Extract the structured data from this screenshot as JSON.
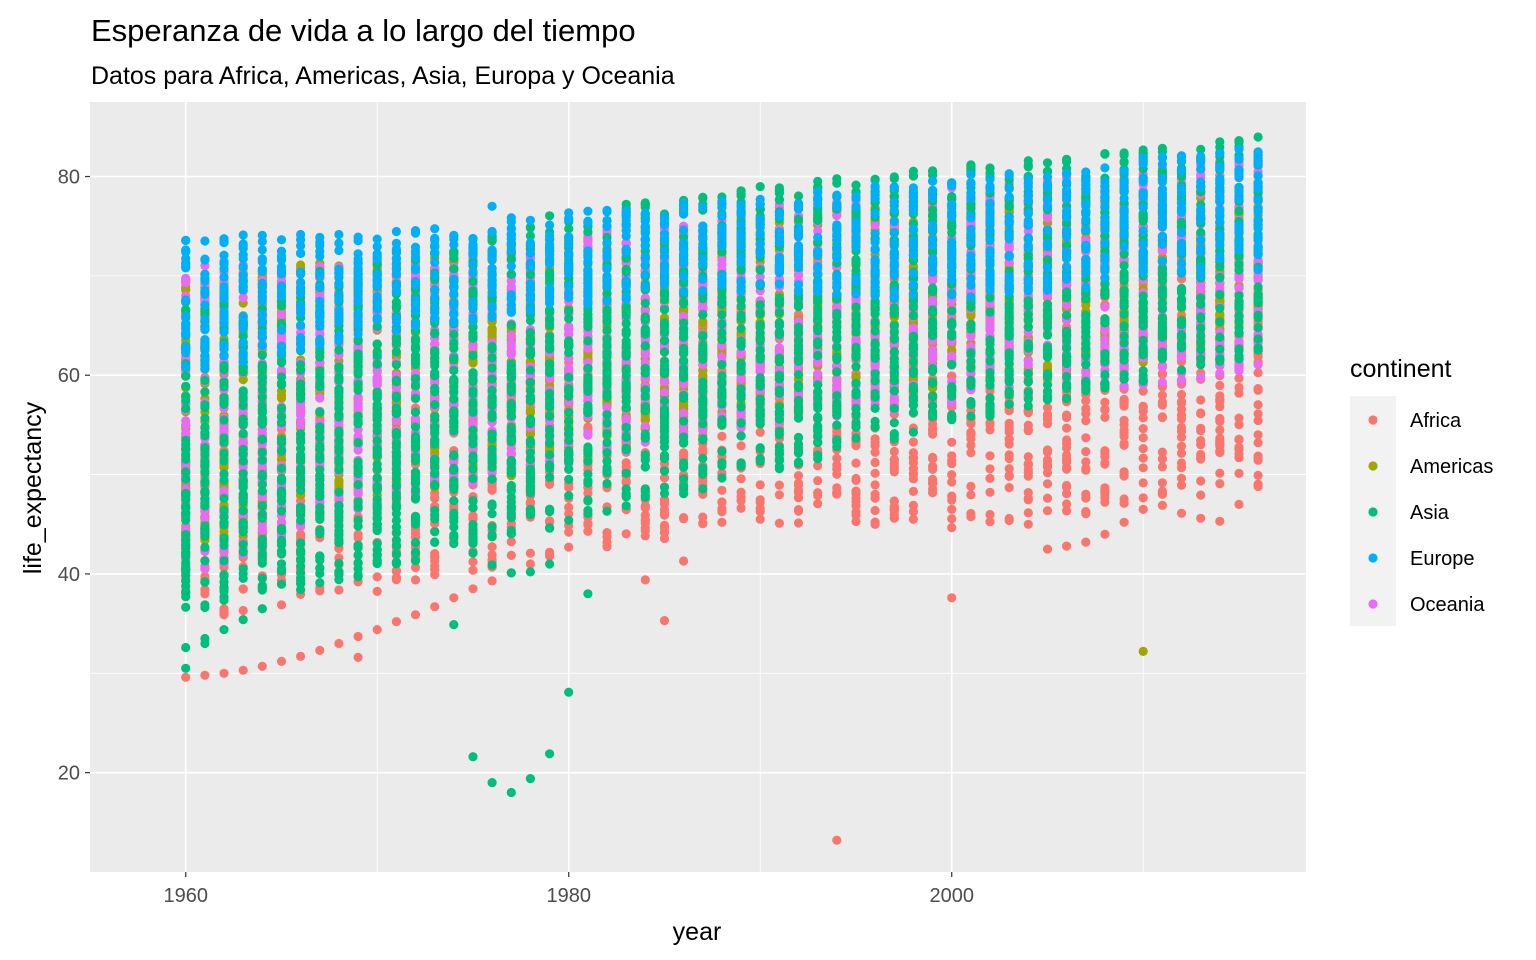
{
  "chart_data": {
    "type": "scatter",
    "title": "Esperanza de vida a lo largo del tiempo",
    "subtitle": "Datos para Africa, Americas, Asia, Europa y Oceania",
    "xlabel": "year",
    "ylabel": "life_expectancy",
    "xlim": [
      1955,
      2018.5
    ],
    "ylim": [
      10,
      87.5
    ],
    "x_ticks": [
      1960,
      1980,
      2000
    ],
    "y_ticks": [
      20,
      40,
      60,
      80
    ],
    "grid": true,
    "legend": {
      "title": "continent",
      "position": "right"
    },
    "series": [
      {
        "name": "Africa",
        "color": "#F8766D",
        "bands": [
          {
            "x": 1960,
            "lo": 35.0,
            "hi": 53.0
          },
          {
            "x": 1970,
            "lo": 38.0,
            "hi": 57.0
          },
          {
            "x": 1980,
            "lo": 42.0,
            "hi": 62.0
          },
          {
            "x": 1990,
            "lo": 45.0,
            "hi": 68.0
          },
          {
            "x": 2000,
            "lo": 44.5,
            "hi": 72.0
          },
          {
            "x": 2010,
            "lo": 46.5,
            "hi": 75.5
          },
          {
            "x": 2016,
            "lo": 49.0,
            "hi": 77.0
          }
        ],
        "points": [
          [
            1960,
            29.6
          ],
          [
            1961,
            29.8
          ],
          [
            1962,
            30.0
          ],
          [
            1963,
            30.3
          ],
          [
            1964,
            30.7
          ],
          [
            1965,
            31.2
          ],
          [
            1966,
            31.7
          ],
          [
            1967,
            32.3
          ],
          [
            1968,
            33.0
          ],
          [
            1969,
            33.7
          ],
          [
            1969,
            31.6
          ],
          [
            1970,
            34.4
          ],
          [
            1971,
            35.2
          ],
          [
            1972,
            35.9
          ],
          [
            1973,
            36.7
          ],
          [
            1974,
            37.6
          ],
          [
            1975,
            38.5
          ],
          [
            1976,
            39.3
          ],
          [
            1977,
            40.1
          ],
          [
            1978,
            41.0
          ],
          [
            1979,
            41.8
          ],
          [
            1980,
            42.7
          ],
          [
            1984,
            39.4
          ],
          [
            1985,
            35.3
          ],
          [
            1986,
            41.3
          ],
          [
            1994,
            13.2
          ],
          [
            2000,
            37.6
          ],
          [
            2004,
            45.0
          ],
          [
            2005,
            42.5
          ],
          [
            2006,
            42.8
          ],
          [
            2007,
            43.2
          ],
          [
            2008,
            44.0
          ],
          [
            2009,
            45.2
          ],
          [
            2010,
            46.5
          ],
          [
            2011,
            46.9
          ],
          [
            2012,
            46.1
          ],
          [
            2013,
            45.6
          ],
          [
            2014,
            45.3
          ],
          [
            2015,
            47.0
          ],
          [
            2016,
            48.8
          ],
          [
            2015,
            51.7
          ],
          [
            2016,
            54.0
          ]
        ]
      },
      {
        "name": "Americas",
        "color": "#A3A500",
        "bands": [
          {
            "x": 1960,
            "lo": 42.0,
            "hi": 70.0
          },
          {
            "x": 1970,
            "lo": 47.0,
            "hi": 72.0
          },
          {
            "x": 1980,
            "lo": 51.0,
            "hi": 74.0
          },
          {
            "x": 1990,
            "lo": 55.0,
            "hi": 76.0
          },
          {
            "x": 2000,
            "lo": 58.0,
            "hi": 77.5
          },
          {
            "x": 2016,
            "lo": 63.0,
            "hi": 79.5
          }
        ],
        "points": [
          [
            2010,
            32.2
          ]
        ]
      },
      {
        "name": "Asia",
        "color": "#00BF7D",
        "bands": [
          {
            "x": 1960,
            "lo": 36.0,
            "hi": 68.0
          },
          {
            "x": 1970,
            "lo": 40.0,
            "hi": 72.0
          },
          {
            "x": 1980,
            "lo": 45.0,
            "hi": 76.5
          },
          {
            "x": 1990,
            "lo": 50.0,
            "hi": 79.0
          },
          {
            "x": 2000,
            "lo": 55.0,
            "hi": 81.0
          },
          {
            "x": 2016,
            "lo": 62.0,
            "hi": 84.0
          }
        ],
        "points": [
          [
            1960,
            30.5
          ],
          [
            1960,
            32.6
          ],
          [
            1961,
            33.5
          ],
          [
            1961,
            33.0
          ],
          [
            1962,
            34.4
          ],
          [
            1963,
            35.4
          ],
          [
            1964,
            36.5
          ],
          [
            1974,
            34.9
          ],
          [
            1975,
            21.6
          ],
          [
            1976,
            19.0
          ],
          [
            1977,
            18.0
          ],
          [
            1978,
            19.4
          ],
          [
            1979,
            21.9
          ],
          [
            1980,
            28.1
          ],
          [
            1981,
            38.0
          ],
          [
            1975,
            42.1
          ],
          [
            1976,
            40.9
          ],
          [
            1977,
            40.1
          ],
          [
            1978,
            40.2
          ],
          [
            1979,
            41.0
          ]
        ]
      },
      {
        "name": "Europe",
        "color": "#00B0F6",
        "bands": [
          {
            "x": 1960,
            "lo": 60.0,
            "hi": 74.0
          },
          {
            "x": 1970,
            "lo": 64.0,
            "hi": 74.5
          },
          {
            "x": 1980,
            "lo": 67.0,
            "hi": 76.5
          },
          {
            "x": 1990,
            "lo": 68.5,
            "hi": 78.0
          },
          {
            "x": 2000,
            "lo": 67.5,
            "hi": 80.0
          },
          {
            "x": 2016,
            "lo": 70.5,
            "hi": 83.0
          }
        ],
        "points": [
          [
            1976,
            77.0
          ]
        ]
      },
      {
        "name": "Oceania",
        "color": "#E76BF3",
        "bands": [
          {
            "x": 1960,
            "lo": 39.5,
            "hi": 71.0
          },
          {
            "x": 1970,
            "lo": 47.0,
            "hi": 71.5
          },
          {
            "x": 1980,
            "lo": 51.0,
            "hi": 74.0
          },
          {
            "x": 1990,
            "lo": 55.0,
            "hi": 77.0
          },
          {
            "x": 2000,
            "lo": 57.0,
            "hi": 79.0
          },
          {
            "x": 2016,
            "lo": 60.0,
            "hi": 82.0
          }
        ],
        "points": []
      }
    ]
  }
}
